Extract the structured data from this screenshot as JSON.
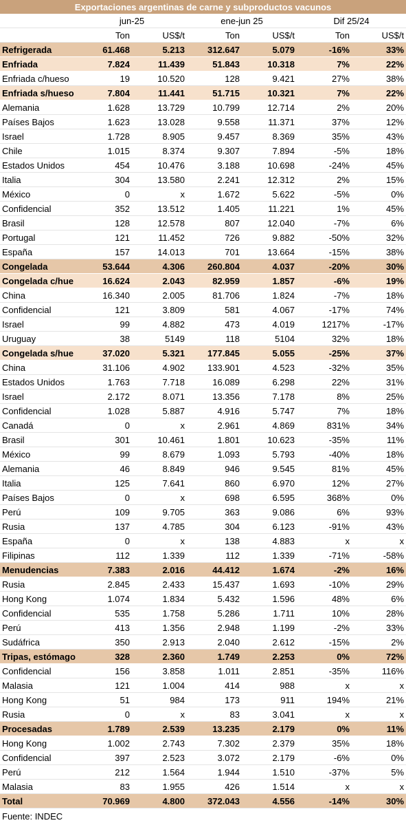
{
  "title": "Exportaciones argentinas de carne y subproductos vacunos",
  "periods": [
    "jun-25",
    "ene-jun 25",
    "Dif 25/24"
  ],
  "units": [
    "Ton",
    "US$/t",
    "Ton",
    "US$/t",
    "Ton",
    "US$/t"
  ],
  "colors": {
    "title_bg": "#c9a27c",
    "level1_bg": "#e6c7a8",
    "level2_bg": "#f7e1cc"
  },
  "rows": [
    {
      "label": "Refrigerada",
      "level": 1,
      "v": [
        "61.468",
        "5.213",
        "312.647",
        "5.079",
        "-16%",
        "33%"
      ]
    },
    {
      "label": "Enfriada",
      "level": 2,
      "v": [
        "7.824",
        "11.439",
        "51.843",
        "10.318",
        "7%",
        "22%"
      ]
    },
    {
      "label": "Enfriada c/hueso",
      "level": 3,
      "v": [
        "19",
        "10.520",
        "128",
        "9.421",
        "27%",
        "38%"
      ]
    },
    {
      "label": "Enfriada s/hueso",
      "level": 2,
      "v": [
        "7.804",
        "11.441",
        "51.715",
        "10.321",
        "7%",
        "22%"
      ]
    },
    {
      "label": "Alemania",
      "level": 3,
      "v": [
        "1.628",
        "13.729",
        "10.799",
        "12.714",
        "2%",
        "20%"
      ]
    },
    {
      "label": "Países Bajos",
      "level": 3,
      "v": [
        "1.623",
        "13.028",
        "9.558",
        "11.371",
        "37%",
        "12%"
      ]
    },
    {
      "label": "Israel",
      "level": 3,
      "v": [
        "1.728",
        "8.905",
        "9.457",
        "8.369",
        "35%",
        "43%"
      ]
    },
    {
      "label": "Chile",
      "level": 3,
      "v": [
        "1.015",
        "8.374",
        "9.307",
        "7.894",
        "-5%",
        "18%"
      ]
    },
    {
      "label": "Estados Unidos",
      "level": 3,
      "v": [
        "454",
        "10.476",
        "3.188",
        "10.698",
        "-24%",
        "45%"
      ]
    },
    {
      "label": "Italia",
      "level": 3,
      "v": [
        "304",
        "13.580",
        "2.241",
        "12.312",
        "2%",
        "15%"
      ]
    },
    {
      "label": "México",
      "level": 3,
      "v": [
        "0",
        "x",
        "1.672",
        "5.622",
        "-5%",
        "0%"
      ]
    },
    {
      "label": "Confidencial",
      "level": 3,
      "v": [
        "352",
        "13.512",
        "1.405",
        "11.221",
        "1%",
        "45%"
      ]
    },
    {
      "label": "Brasil",
      "level": 3,
      "v": [
        "128",
        "12.578",
        "807",
        "12.040",
        "-7%",
        "6%"
      ]
    },
    {
      "label": "Portugal",
      "level": 3,
      "v": [
        "121",
        "11.452",
        "726",
        "9.882",
        "-50%",
        "32%"
      ]
    },
    {
      "label": "España",
      "level": 3,
      "v": [
        "157",
        "14.013",
        "701",
        "13.664",
        "-15%",
        "38%"
      ]
    },
    {
      "label": "Congelada",
      "level": 1,
      "v": [
        "53.644",
        "4.306",
        "260.804",
        "4.037",
        "-20%",
        "30%"
      ]
    },
    {
      "label": "Congelada c/hue",
      "level": 2,
      "v": [
        "16.624",
        "2.043",
        "82.959",
        "1.857",
        "-6%",
        "19%"
      ]
    },
    {
      "label": "China",
      "level": 3,
      "v": [
        "16.340",
        "2.005",
        "81.706",
        "1.824",
        "-7%",
        "18%"
      ]
    },
    {
      "label": "Confidencial",
      "level": 3,
      "v": [
        "121",
        "3.809",
        "581",
        "4.067",
        "-17%",
        "74%"
      ]
    },
    {
      "label": "Israel",
      "level": 3,
      "v": [
        "99",
        "4.882",
        "473",
        "4.019",
        "1217%",
        "-17%"
      ]
    },
    {
      "label": "Uruguay",
      "level": 3,
      "v": [
        "38",
        "5149",
        "118",
        "5104",
        "32%",
        "18%"
      ]
    },
    {
      "label": "Congelada s/hue",
      "level": 2,
      "v": [
        "37.020",
        "5.321",
        "177.845",
        "5.055",
        "-25%",
        "37%"
      ]
    },
    {
      "label": "China",
      "level": 3,
      "v": [
        "31.106",
        "4.902",
        "133.901",
        "4.523",
        "-32%",
        "35%"
      ]
    },
    {
      "label": "Estados Unidos",
      "level": 3,
      "v": [
        "1.763",
        "7.718",
        "16.089",
        "6.298",
        "22%",
        "31%"
      ]
    },
    {
      "label": "Israel",
      "level": 3,
      "v": [
        "2.172",
        "8.071",
        "13.356",
        "7.178",
        "8%",
        "25%"
      ]
    },
    {
      "label": "Confidencial",
      "level": 3,
      "v": [
        "1.028",
        "5.887",
        "4.916",
        "5.747",
        "7%",
        "18%"
      ]
    },
    {
      "label": "Canadá",
      "level": 3,
      "v": [
        "0",
        "x",
        "2.961",
        "4.869",
        "831%",
        "34%"
      ]
    },
    {
      "label": "Brasil",
      "level": 3,
      "v": [
        "301",
        "10.461",
        "1.801",
        "10.623",
        "-35%",
        "11%"
      ]
    },
    {
      "label": "México",
      "level": 3,
      "v": [
        "99",
        "8.679",
        "1.093",
        "5.793",
        "-40%",
        "18%"
      ]
    },
    {
      "label": "Alemania",
      "level": 3,
      "v": [
        "46",
        "8.849",
        "946",
        "9.545",
        "81%",
        "45%"
      ]
    },
    {
      "label": "Italia",
      "level": 3,
      "v": [
        "125",
        "7.641",
        "860",
        "6.970",
        "12%",
        "27%"
      ]
    },
    {
      "label": "Países Bajos",
      "level": 3,
      "v": [
        "0",
        "x",
        "698",
        "6.595",
        "368%",
        "0%"
      ]
    },
    {
      "label": "Perú",
      "level": 3,
      "v": [
        "109",
        "9.705",
        "363",
        "9.086",
        "6%",
        "93%"
      ]
    },
    {
      "label": "Rusia",
      "level": 3,
      "v": [
        "137",
        "4.785",
        "304",
        "6.123",
        "-91%",
        "43%"
      ]
    },
    {
      "label": "España",
      "level": 3,
      "v": [
        "0",
        "x",
        "138",
        "4.883",
        "x",
        "x"
      ]
    },
    {
      "label": "Filipinas",
      "level": 3,
      "v": [
        "112",
        "1.339",
        "112",
        "1.339",
        "-71%",
        "-58%"
      ]
    },
    {
      "label": "Menudencias",
      "level": 1,
      "v": [
        "7.383",
        "2.016",
        "44.412",
        "1.674",
        "-2%",
        "16%"
      ]
    },
    {
      "label": "Rusia",
      "level": 3,
      "v": [
        "2.845",
        "2.433",
        "15.437",
        "1.693",
        "-10%",
        "29%"
      ]
    },
    {
      "label": "Hong Kong",
      "level": 3,
      "v": [
        "1.074",
        "1.834",
        "5.432",
        "1.596",
        "48%",
        "6%"
      ]
    },
    {
      "label": "Confidencial",
      "level": 3,
      "v": [
        "535",
        "1.758",
        "5.286",
        "1.711",
        "10%",
        "28%"
      ]
    },
    {
      "label": "Perú",
      "level": 3,
      "v": [
        "413",
        "1.356",
        "2.948",
        "1.199",
        "-2%",
        "33%"
      ]
    },
    {
      "label": "Sudáfrica",
      "level": 3,
      "v": [
        "350",
        "2.913",
        "2.040",
        "2.612",
        "-15%",
        "2%"
      ]
    },
    {
      "label": "Tripas, estómago",
      "level": 1,
      "v": [
        "328",
        "2.360",
        "1.749",
        "2.253",
        "0%",
        "72%"
      ]
    },
    {
      "label": "Confidencial",
      "level": 3,
      "v": [
        "156",
        "3.858",
        "1.011",
        "2.851",
        "-35%",
        "116%"
      ]
    },
    {
      "label": "Malasia",
      "level": 3,
      "v": [
        "121",
        "1.004",
        "414",
        "988",
        "x",
        "x"
      ]
    },
    {
      "label": "Hong Kong",
      "level": 3,
      "v": [
        "51",
        "984",
        "173",
        "911",
        "194%",
        "21%"
      ]
    },
    {
      "label": "Rusia",
      "level": 3,
      "v": [
        "0",
        "x",
        "83",
        "3.041",
        "x",
        "x"
      ]
    },
    {
      "label": "Procesadas",
      "level": 1,
      "v": [
        "1.789",
        "2.539",
        "13.235",
        "2.179",
        "0%",
        "11%"
      ]
    },
    {
      "label": "Hong Kong",
      "level": 3,
      "v": [
        "1.002",
        "2.743",
        "7.302",
        "2.379",
        "35%",
        "18%"
      ]
    },
    {
      "label": "Confidencial",
      "level": 3,
      "v": [
        "397",
        "2.523",
        "3.072",
        "2.179",
        "-6%",
        "0%"
      ]
    },
    {
      "label": "Perú",
      "level": 3,
      "v": [
        "212",
        "1.564",
        "1.944",
        "1.510",
        "-37%",
        "5%"
      ]
    },
    {
      "label": "Malasia",
      "level": 3,
      "v": [
        "83",
        "1.955",
        "426",
        "1.514",
        "x",
        "x"
      ]
    },
    {
      "label": "Total",
      "level": 0,
      "v": [
        "70.969",
        "4.800",
        "372.043",
        "4.556",
        "-14%",
        "30%"
      ]
    }
  ],
  "source": "Fuente: INDEC"
}
